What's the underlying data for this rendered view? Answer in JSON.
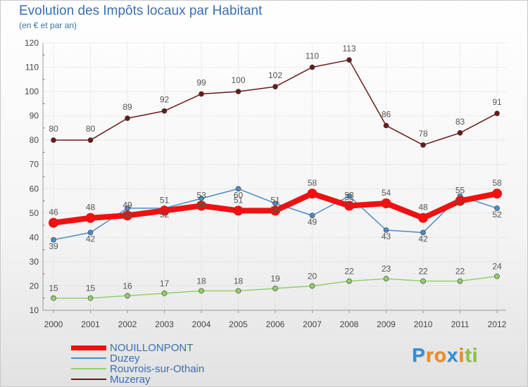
{
  "header": {
    "title": "Evolution des Impôts locaux par Habitant",
    "subtitle": "(en € et par an)"
  },
  "colors": {
    "title": "#3a6fb0",
    "grid": "#cccccc",
    "axis": "#999999",
    "minor_tick": "#cc0000"
  },
  "chart_data": {
    "type": "line",
    "title": "Evolution des Impôts locaux par Habitant",
    "subtitle": "(en € et par an)",
    "xlabel": "",
    "ylabel": "",
    "x": [
      "2000",
      "2001",
      "2002",
      "2003",
      "2004",
      "2005",
      "2006",
      "2007",
      "2008",
      "2009",
      "2010",
      "2011",
      "2012"
    ],
    "ylim": [
      10,
      120
    ],
    "yticks": [
      10,
      20,
      30,
      40,
      50,
      60,
      70,
      80,
      90,
      100,
      110,
      120
    ],
    "grid": true,
    "legend_position": "bottom-left",
    "series": [
      {
        "name": "NOUILLONPONT",
        "color": "#ee1111",
        "values": [
          46,
          48,
          49,
          51,
          53,
          51,
          51,
          58,
          53,
          54,
          48,
          55,
          58
        ]
      },
      {
        "name": "Duzey",
        "color": "#4a8cc9",
        "values": [
          39,
          42,
          52,
          52,
          56,
          60,
          54,
          49,
          57,
          43,
          42,
          57,
          52
        ]
      },
      {
        "name": "Rouvrois-sur-Othain",
        "color": "#8fd16a",
        "values": [
          15,
          15,
          16,
          17,
          18,
          18,
          19,
          20,
          22,
          23,
          22,
          22,
          24
        ]
      },
      {
        "name": "Muzeray",
        "color": "#6b1a1a",
        "values": [
          80,
          80,
          89,
          92,
          99,
          100,
          102,
          110,
          113,
          86,
          78,
          83,
          91
        ]
      }
    ]
  },
  "logo": {
    "letters": [
      "P",
      "r",
      "o",
      "x",
      "i",
      "t",
      "i"
    ],
    "colors": [
      "#2f8fd6",
      "#f08a1c",
      "#f08a1c",
      "#2f8fd6",
      "#f08a1c",
      "#8ac43f",
      "#8ac43f"
    ]
  }
}
